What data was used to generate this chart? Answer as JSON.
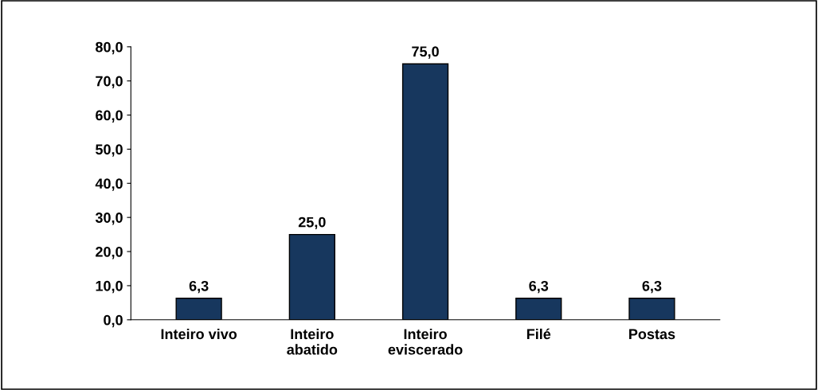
{
  "chart_data": {
    "type": "bar",
    "categories": [
      "Inteiro vivo",
      "Inteiro\nabatido",
      "Inteiro\neviscerado",
      "Filé",
      "Postas"
    ],
    "values": [
      6.3,
      25.0,
      75.0,
      6.3,
      6.3
    ],
    "value_labels": [
      "6,3",
      "25,0",
      "75,0",
      "6,3",
      "6,3"
    ],
    "color": "#17375e",
    "ylim": [
      0,
      80
    ],
    "yticks": [
      {
        "value": 0,
        "label": "0,0"
      },
      {
        "value": 10,
        "label": "10,0"
      },
      {
        "value": 20,
        "label": "20,0"
      },
      {
        "value": 30,
        "label": "30,0"
      },
      {
        "value": 40,
        "label": "40,0"
      },
      {
        "value": 50,
        "label": "50,0"
      },
      {
        "value": 60,
        "label": "60,0"
      },
      {
        "value": 70,
        "label": "70,0"
      },
      {
        "value": 80,
        "label": "80,0"
      }
    ],
    "grid": false,
    "legend": false
  }
}
